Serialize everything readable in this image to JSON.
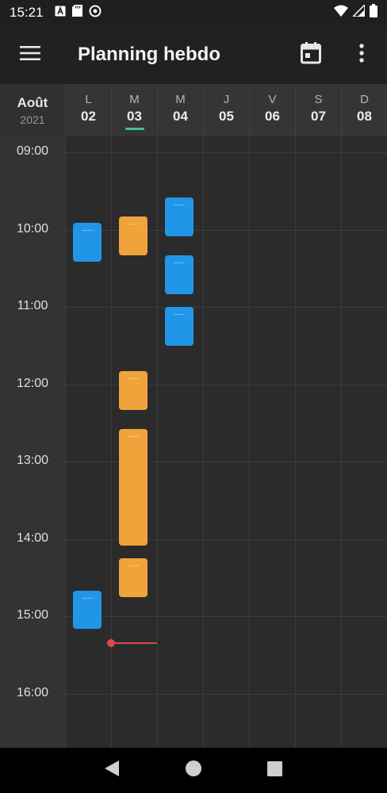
{
  "status_bar": {
    "time": "15:21",
    "icons_left": [
      "letter-a-icon",
      "sd-card-icon",
      "do-not-disturb-icon"
    ],
    "icons_right": [
      "wifi-icon",
      "signal-icon",
      "battery-icon"
    ]
  },
  "app_bar": {
    "title": "Planning hebdo",
    "menu_icon": "hamburger-menu-icon",
    "actions": [
      "calendar-today-icon",
      "more-vert-icon"
    ]
  },
  "calendar": {
    "month": "Août",
    "year": "2021",
    "days": [
      {
        "letter": "L",
        "number": "02",
        "today": false
      },
      {
        "letter": "M",
        "number": "03",
        "today": true
      },
      {
        "letter": "M",
        "number": "04",
        "today": false
      },
      {
        "letter": "J",
        "number": "05",
        "today": false
      },
      {
        "letter": "V",
        "number": "06",
        "today": false
      },
      {
        "letter": "S",
        "number": "07",
        "today": false
      },
      {
        "letter": "D",
        "number": "08",
        "today": false
      }
    ],
    "hours": [
      "09:00",
      "10:00",
      "11:00",
      "12:00",
      "13:00",
      "14:00",
      "15:00",
      "16:00"
    ],
    "colors": {
      "blue": "#2196e8",
      "orange": "#f0a33a",
      "today_accent": "#44c48a",
      "now_indicator": "#e04848"
    },
    "events": [
      {
        "day": 0,
        "start": "09:55",
        "end": "10:25",
        "color": "blue"
      },
      {
        "day": 0,
        "start": "14:40",
        "end": "15:10",
        "color": "blue"
      },
      {
        "day": 1,
        "start": "09:50",
        "end": "10:20",
        "color": "orange"
      },
      {
        "day": 1,
        "start": "11:50",
        "end": "12:20",
        "color": "orange"
      },
      {
        "day": 1,
        "start": "12:35",
        "end": "14:05",
        "color": "orange"
      },
      {
        "day": 1,
        "start": "14:15",
        "end": "14:45",
        "color": "orange"
      },
      {
        "day": 2,
        "start": "09:35",
        "end": "10:05",
        "color": "blue"
      },
      {
        "day": 2,
        "start": "10:20",
        "end": "10:50",
        "color": "blue"
      },
      {
        "day": 2,
        "start": "11:00",
        "end": "11:30",
        "color": "blue"
      }
    ],
    "now": {
      "day": 1,
      "time": "15:21"
    }
  },
  "nav_bar": {
    "buttons": [
      "back-icon",
      "home-icon",
      "recents-icon"
    ]
  }
}
